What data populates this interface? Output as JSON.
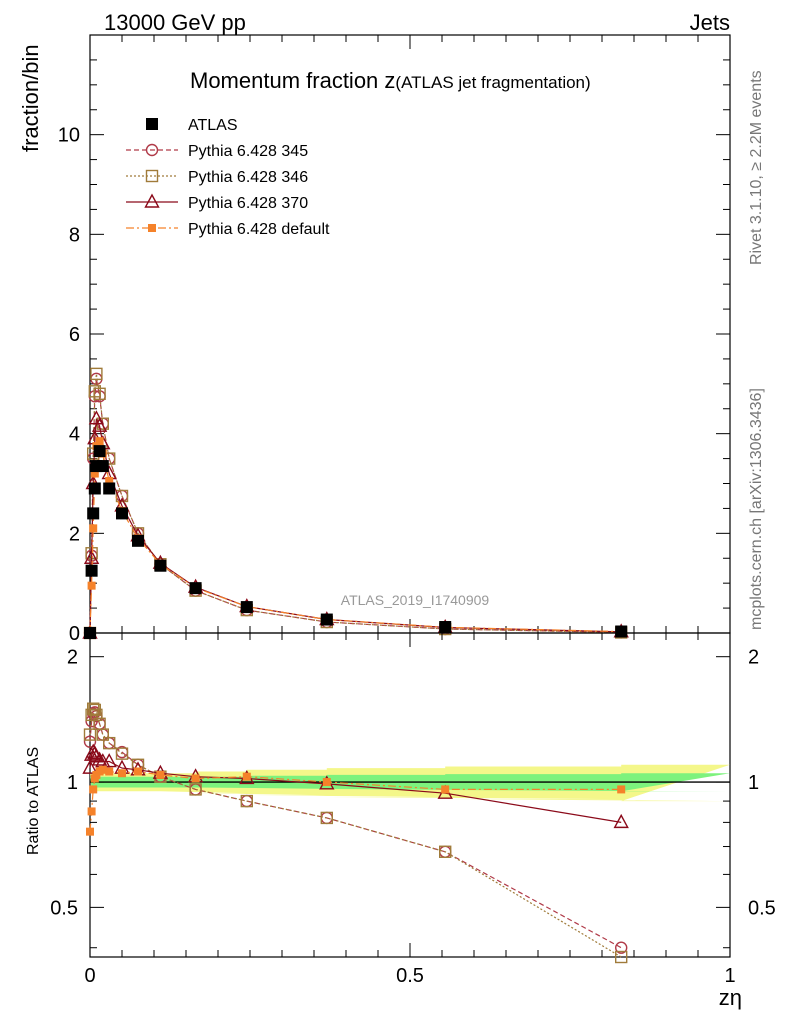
{
  "header": {
    "energy_label": "13000 GeV pp",
    "process_label": "Jets"
  },
  "side_labels": {
    "rivet": "Rivet 3.1.10, ≥ 2.2M events",
    "mcplots": "mcplots.cern.ch [arXiv:1306.3436]"
  },
  "chart_data": [
    {
      "type": "scatter",
      "panel": "main",
      "title": "Momentum fraction z",
      "subtitle": "(ATLAS jet fragmentation)",
      "analysis_label": "ATLAS_2019_I1740909",
      "xlabel": "zη",
      "ylabel": "fraction/bin",
      "xlim": [
        0,
        1
      ],
      "ylim": [
        0,
        12
      ],
      "x_ticks": [
        "0",
        "0.5",
        "1"
      ],
      "y_ticks": [
        "0",
        "2",
        "4",
        "6",
        "8",
        "10"
      ],
      "x": [
        0.0,
        0.0025,
        0.005,
        0.0075,
        0.01,
        0.015,
        0.02,
        0.03,
        0.05,
        0.075,
        0.11,
        0.165,
        0.245,
        0.37,
        0.555,
        0.83
      ],
      "series": [
        {
          "name": "ATLAS",
          "color": "#000000",
          "marker": "filled-square",
          "line": "none",
          "values": [
            0.0,
            1.25,
            2.4,
            2.9,
            3.35,
            3.65,
            3.35,
            2.9,
            2.4,
            1.85,
            1.35,
            0.9,
            0.52,
            0.27,
            0.12,
            0.03
          ]
        },
        {
          "name": "Pythia 6.428 345",
          "color": "#b03a48",
          "marker": "open-circle",
          "line": "dashed",
          "values": [
            0.0,
            1.55,
            3.5,
            4.75,
            5.1,
            4.75,
            4.2,
            3.5,
            2.75,
            2.0,
            1.38,
            0.85,
            0.46,
            0.22,
            0.08,
            0.012
          ]
        },
        {
          "name": "Pythia 6.428 346",
          "color": "#a07b3a",
          "marker": "open-square",
          "line": "dotted",
          "values": [
            0.0,
            1.6,
            3.6,
            4.85,
            5.2,
            4.8,
            4.2,
            3.5,
            2.75,
            2.0,
            1.38,
            0.85,
            0.46,
            0.22,
            0.08,
            0.011
          ]
        },
        {
          "name": "Pythia 6.428 370",
          "color": "#8b0a1a",
          "marker": "open-triangle",
          "line": "solid",
          "values": [
            0.0,
            1.5,
            3.0,
            3.9,
            4.3,
            4.15,
            3.8,
            3.2,
            2.55,
            1.95,
            1.4,
            0.92,
            0.53,
            0.27,
            0.11,
            0.024
          ]
        },
        {
          "name": "Pythia 6.428 default",
          "color": "#f5822a",
          "marker": "filled-small-square",
          "line": "dash-dot",
          "values": [
            0.0,
            0.95,
            2.1,
            3.2,
            3.75,
            3.85,
            3.6,
            3.05,
            2.45,
            1.9,
            1.38,
            0.91,
            0.53,
            0.27,
            0.115,
            0.029
          ]
        }
      ]
    },
    {
      "type": "line",
      "panel": "ratio",
      "ylabel": "Ratio to ATLAS",
      "xlim": [
        0,
        1
      ],
      "ylim": [
        0.38,
        2.28
      ],
      "x_ticks": [
        "0",
        "0.5",
        "1"
      ],
      "y_ticks": [
        "0.5",
        "1",
        "2"
      ],
      "band_inner": {
        "color": "#7df27d",
        "halfwidth": [
          0.03,
          0.03,
          0.03,
          0.03,
          0.03,
          0.03,
          0.03,
          0.03,
          0.03,
          0.03,
          0.03,
          0.03,
          0.035,
          0.04,
          0.045,
          0.05
        ]
      },
      "band_outer": {
        "color": "#f4f78a",
        "halfwidth": [
          0.05,
          0.05,
          0.05,
          0.05,
          0.05,
          0.05,
          0.05,
          0.05,
          0.05,
          0.05,
          0.05,
          0.06,
          0.07,
          0.08,
          0.09,
          0.1
        ]
      },
      "x": [
        0.0,
        0.0025,
        0.005,
        0.0075,
        0.01,
        0.015,
        0.02,
        0.03,
        0.05,
        0.075,
        0.11,
        0.165,
        0.245,
        0.37,
        0.555,
        0.83
      ],
      "series": [
        {
          "name": "Pythia 6.428 345",
          "color": "#b03a48",
          "marker": "open-circle",
          "line": "dashed",
          "values": [
            1.25,
            1.4,
            1.46,
            1.47,
            1.44,
            1.38,
            1.3,
            1.24,
            1.18,
            1.1,
            1.03,
            0.96,
            0.9,
            0.82,
            0.68,
            0.4
          ]
        },
        {
          "name": "Pythia 6.428 346",
          "color": "#a07b3a",
          "marker": "open-square",
          "line": "dotted",
          "values": [
            1.3,
            1.45,
            1.5,
            1.49,
            1.45,
            1.38,
            1.3,
            1.24,
            1.17,
            1.1,
            1.03,
            0.96,
            0.9,
            0.82,
            0.68,
            0.38
          ]
        },
        {
          "name": "Pythia 6.428 370",
          "color": "#8b0a1a",
          "marker": "open-triangle",
          "line": "solid",
          "values": [
            1.08,
            1.16,
            1.18,
            1.17,
            1.15,
            1.13,
            1.12,
            1.12,
            1.08,
            1.07,
            1.05,
            1.03,
            1.02,
            0.99,
            0.94,
            0.8
          ]
        },
        {
          "name": "Pythia 6.428 default",
          "color": "#f5822a",
          "marker": "filled-small-square",
          "line": "dash-dot",
          "values": [
            0.76,
            0.85,
            0.96,
            1.02,
            1.04,
            1.06,
            1.07,
            1.06,
            1.05,
            1.06,
            1.04,
            1.02,
            1.03,
            1.0,
            0.96,
            0.96
          ]
        }
      ]
    }
  ]
}
